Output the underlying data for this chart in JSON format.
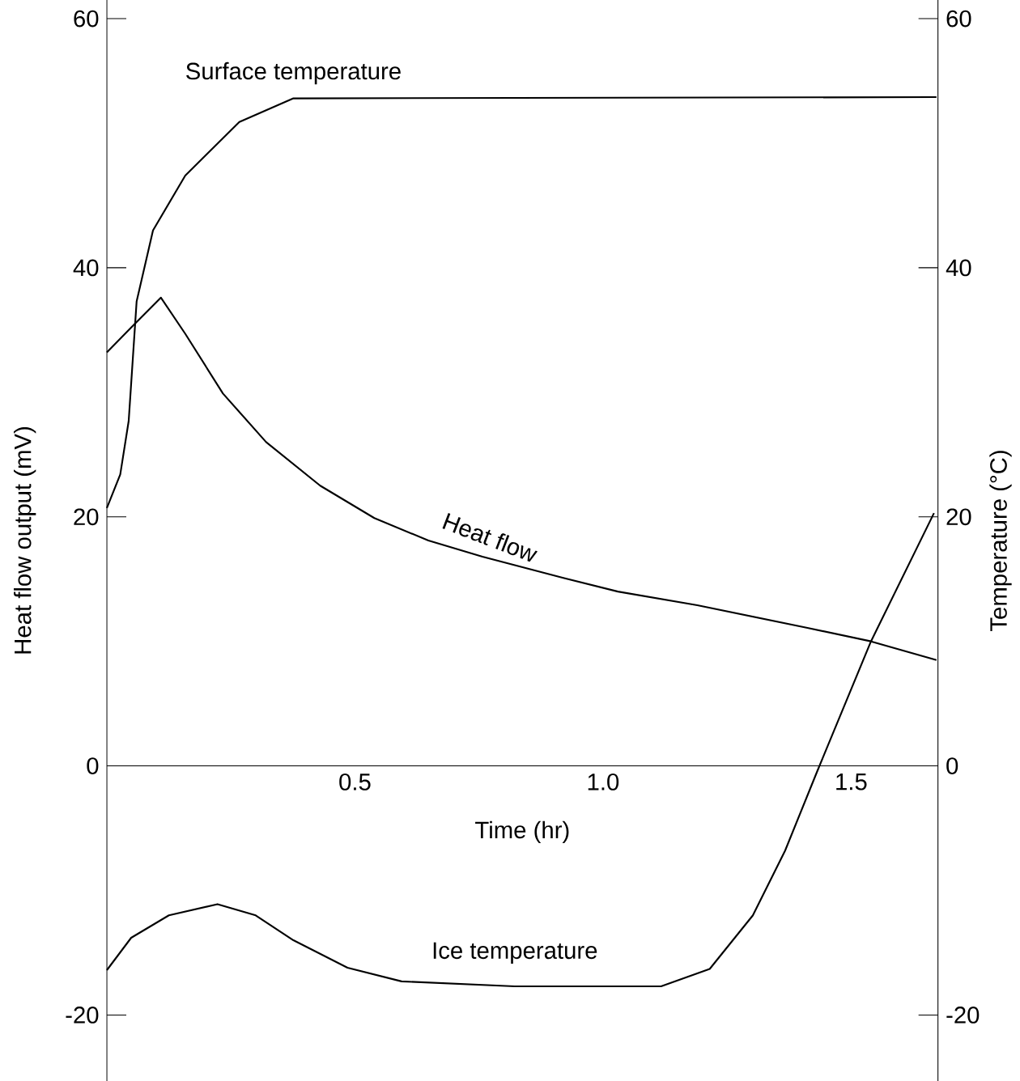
{
  "chart_data": {
    "type": "line",
    "xlabel": "Time (hr)",
    "ylabel": "Heat flow output (mV)",
    "y2label": "Temperature (°C)",
    "xlim": [
      0,
      1.675
    ],
    "xticks": [
      0.5,
      {
        "value": 1.0,
        "label": "1.0"
      },
      1.5
    ],
    "ylim": [
      -25.3,
      61.5
    ],
    "yticks": [
      -20,
      0,
      20,
      40,
      60
    ],
    "y2lim": [
      -25.3,
      61.5
    ],
    "y2ticks": [
      -20,
      0,
      20,
      40,
      60
    ],
    "grid": false,
    "legend": false,
    "marker": "none",
    "line_style": "solid",
    "series": [
      {
        "name": "Surface temperature",
        "color": "#000000",
        "axis": "y2",
        "x": [
          0,
          0.027,
          0.044,
          0.06,
          0.093,
          0.158,
          0.267,
          0.376,
          1.672
        ],
        "values": [
          20.7,
          23.4,
          27.7,
          37.3,
          43.0,
          47.4,
          51.7,
          53.6,
          53.7
        ]
      },
      {
        "name": "Heat flow",
        "color": "#000000",
        "x": [
          0,
          0.049,
          0.109,
          0.158,
          0.234,
          0.321,
          0.43,
          0.539,
          0.648,
          0.757,
          0.92,
          1.03,
          1.19,
          1.41,
          1.54,
          1.672
        ],
        "values": [
          33.2,
          35.2,
          37.6,
          34.7,
          29.9,
          26.0,
          22.5,
          19.9,
          18.1,
          16.8,
          15.1,
          14.0,
          12.9,
          11.1,
          10.0,
          8.5
        ]
      },
      {
        "name": "Ice temperature",
        "color": "#000000",
        "axis": "y2",
        "x": [
          0,
          0.049,
          0.125,
          0.223,
          0.3,
          0.376,
          0.485,
          0.594,
          0.822,
          1.117,
          1.215,
          1.302,
          1.367,
          1.432,
          1.54,
          1.667
        ],
        "values": [
          -16.4,
          -13.8,
          -12.0,
          -11.1,
          -12.0,
          -14.0,
          -16.2,
          -17.3,
          -17.7,
          -17.7,
          -16.3,
          -12.0,
          -6.8,
          -0.4,
          10.0,
          20.3
        ]
      }
    ]
  }
}
